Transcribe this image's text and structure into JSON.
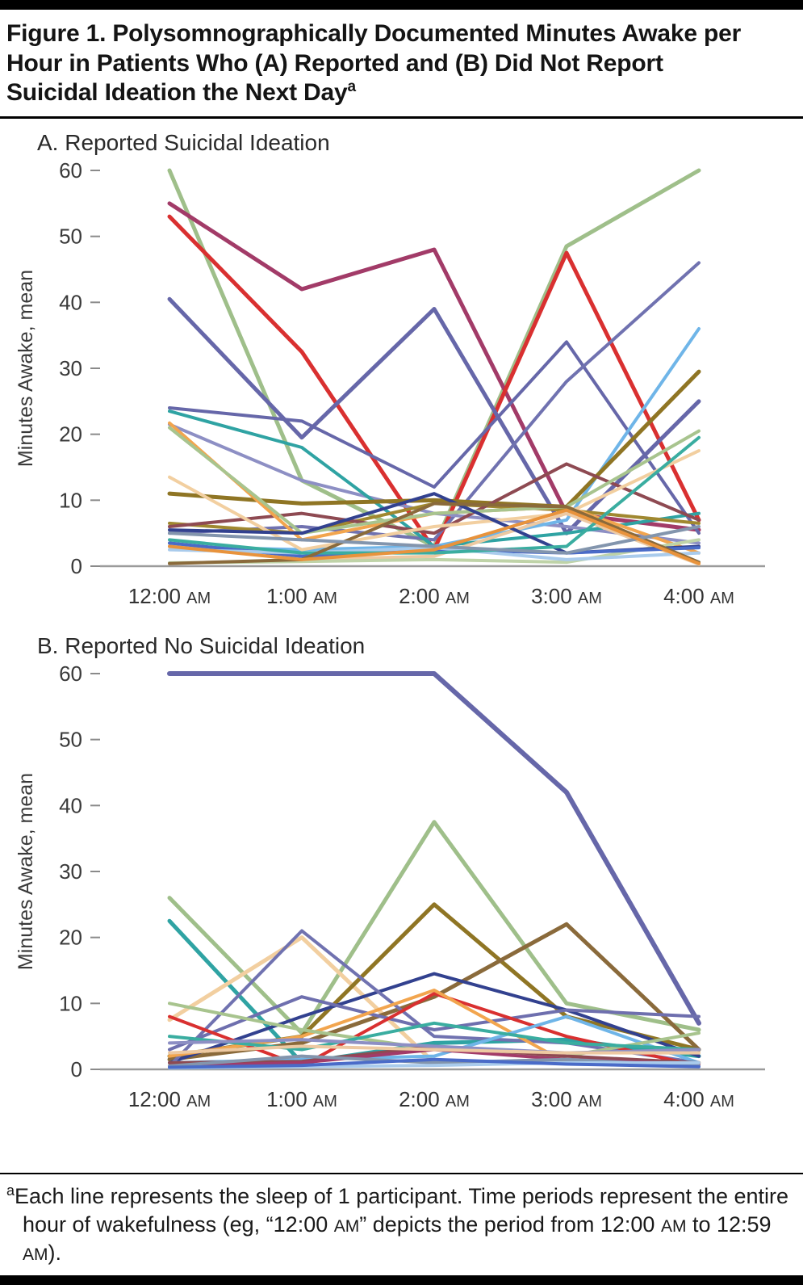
{
  "figure": {
    "title": "Figure 1. Polysomnographically Documented Minutes Awake per Hour in Patients Who (A) Reported and (B) Did Not Report Suicidal Ideation the Next Day",
    "title_superscript": "a"
  },
  "axes": {
    "ylabel": "Minutes Awake, mean",
    "ymin": 0,
    "ymax": 60,
    "yticks": [
      0,
      10,
      20,
      30,
      40,
      50,
      60
    ],
    "x_labels": [
      {
        "time": "12:00",
        "period": "AM"
      },
      {
        "time": "1:00",
        "period": "AM"
      },
      {
        "time": "2:00",
        "period": "AM"
      },
      {
        "time": "3:00",
        "period": "AM"
      },
      {
        "time": "4:00",
        "period": "AM"
      }
    ]
  },
  "chart_data": [
    {
      "type": "line",
      "panel": "A",
      "title": "A. Reported Suicidal Ideation",
      "xlabel": "",
      "ylabel": "Minutes Awake, mean",
      "ylim": [
        0,
        60
      ],
      "grid": false,
      "legend": "none",
      "categories": [
        "12:00 AM",
        "1:00 AM",
        "2:00 AM",
        "3:00 AM",
        "4:00 AM"
      ],
      "series": [
        {
          "name": "participant-A1",
          "color": "#9FBF8A",
          "width": 5,
          "values": [
            60,
            13,
            3,
            48.5,
            60
          ]
        },
        {
          "name": "participant-A2",
          "color": "#A23B68",
          "width": 5,
          "values": [
            55,
            42,
            48,
            8,
            5.5
          ]
        },
        {
          "name": "participant-A3",
          "color": "#D93030",
          "width": 5,
          "values": [
            53,
            32.5,
            2.5,
            47.5,
            7
          ]
        },
        {
          "name": "participant-A4",
          "color": "#6667A9",
          "width": 5,
          "values": [
            40.5,
            19.5,
            39,
            5,
            25
          ]
        },
        {
          "name": "participant-A5",
          "color": "#6667A9",
          "width": 4,
          "values": [
            24,
            22,
            12,
            34,
            5
          ]
        },
        {
          "name": "participant-A6",
          "color": "#7072B0",
          "width": 4,
          "values": [
            5,
            6,
            4,
            28,
            46
          ]
        },
        {
          "name": "participant-A7",
          "color": "#8D8FC4",
          "width": 4,
          "values": [
            21.5,
            13,
            8,
            6,
            3.5
          ]
        },
        {
          "name": "participant-A8",
          "color": "#2FA3A3",
          "width": 4,
          "values": [
            23.5,
            18,
            3,
            5,
            8
          ]
        },
        {
          "name": "participant-A9",
          "color": "#6FB5E8",
          "width": 4,
          "values": [
            3,
            2.5,
            3,
            7,
            36
          ]
        },
        {
          "name": "participant-A10",
          "color": "#8F7524",
          "width": 5,
          "values": [
            11,
            9.5,
            10,
            9,
            29.5
          ]
        },
        {
          "name": "participant-A11",
          "color": "#A08830",
          "width": 4,
          "values": [
            6.5,
            5,
            9.5,
            8.5,
            6.5
          ]
        },
        {
          "name": "participant-A12",
          "color": "#8E4A52",
          "width": 4,
          "values": [
            6,
            8,
            5,
            15.5,
            7
          ]
        },
        {
          "name": "participant-A13",
          "color": "#F2A54E",
          "width": 4,
          "values": [
            21.7,
            4,
            8,
            9,
            2
          ]
        },
        {
          "name": "participant-A14",
          "color": "#F2CFA0",
          "width": 4,
          "values": [
            13.5,
            2.5,
            6,
            8,
            17.5
          ]
        },
        {
          "name": "participant-A15",
          "color": "#EDC9A2",
          "width": 4,
          "values": [
            3.5,
            1,
            1.5,
            8,
            0.3
          ]
        },
        {
          "name": "participant-A16",
          "color": "#A8C48E",
          "width": 4,
          "values": [
            21,
            5,
            8,
            9,
            20.5
          ]
        },
        {
          "name": "participant-A17",
          "color": "#BFD3A8",
          "width": 4,
          "values": [
            0.5,
            0.7,
            1,
            0.6,
            4
          ]
        },
        {
          "name": "participant-A18",
          "color": "#32418F",
          "width": 4,
          "values": [
            5.5,
            5,
            11,
            2,
            3
          ]
        },
        {
          "name": "participant-A19",
          "color": "#4A6BC8",
          "width": 4,
          "values": [
            3.5,
            1.5,
            2.5,
            2,
            2.8
          ]
        },
        {
          "name": "participant-A20",
          "color": "#A9CBEC",
          "width": 4,
          "values": [
            2.5,
            2,
            2.8,
            1,
            2
          ]
        },
        {
          "name": "participant-A21",
          "color": "#3AADA0",
          "width": 4,
          "values": [
            4,
            2,
            2,
            3,
            19.5
          ]
        },
        {
          "name": "participant-A22",
          "color": "#8A6A3B",
          "width": 4,
          "values": [
            0.4,
            1,
            9.5,
            9,
            0.6
          ]
        },
        {
          "name": "participant-A23",
          "color": "#8395AD",
          "width": 4,
          "values": [
            5,
            4,
            3,
            2,
            6
          ]
        },
        {
          "name": "participant-A24",
          "color": "#E8933C",
          "width": 4,
          "values": [
            3,
            1,
            2.5,
            8.5,
            0.4
          ]
        }
      ]
    },
    {
      "type": "line",
      "panel": "B",
      "title": "B. Reported No Suicidal Ideation",
      "xlabel": "",
      "ylabel": "Minutes Awake, mean",
      "ylim": [
        0,
        60
      ],
      "grid": false,
      "legend": "none",
      "categories": [
        "12:00 AM",
        "1:00 AM",
        "2:00 AM",
        "3:00 AM",
        "4:00 AM"
      ],
      "series": [
        {
          "name": "participant-B1",
          "color": "#6667A9",
          "width": 6,
          "values": [
            60,
            60,
            60,
            42,
            7
          ]
        },
        {
          "name": "participant-B2",
          "color": "#9FBF8A",
          "width": 5,
          "values": [
            26,
            5.5,
            37.5,
            10,
            6
          ]
        },
        {
          "name": "participant-B3",
          "color": "#2FA3A3",
          "width": 5,
          "values": [
            22.5,
            1,
            4,
            4.5,
            2
          ]
        },
        {
          "name": "participant-B4",
          "color": "#F2CFA0",
          "width": 5,
          "values": [
            7.5,
            20,
            1,
            1.2,
            1
          ]
        },
        {
          "name": "participant-B5",
          "color": "#8F7524",
          "width": 5,
          "values": [
            2,
            5,
            25,
            8,
            3
          ]
        },
        {
          "name": "participant-B6",
          "color": "#8A6A3B",
          "width": 5,
          "values": [
            1.5,
            4,
            11,
            22,
            3
          ]
        },
        {
          "name": "participant-B7",
          "color": "#32418F",
          "width": 4,
          "values": [
            1,
            8,
            14.5,
            9,
            2
          ]
        },
        {
          "name": "participant-B8",
          "color": "#7072B0",
          "width": 4,
          "values": [
            0.5,
            21,
            5,
            4,
            1
          ]
        },
        {
          "name": "participant-B9",
          "color": "#6E6FAE",
          "width": 4,
          "values": [
            3,
            11,
            6,
            9,
            8
          ]
        },
        {
          "name": "participant-B10",
          "color": "#D93030",
          "width": 4,
          "values": [
            8,
            0.5,
            11.5,
            5,
            0.5
          ]
        },
        {
          "name": "participant-B11",
          "color": "#F2A54E",
          "width": 4,
          "values": [
            2,
            5,
            12,
            1,
            0.5
          ]
        },
        {
          "name": "participant-B12",
          "color": "#6FB5E8",
          "width": 4,
          "values": [
            1,
            1.5,
            2,
            8,
            1
          ]
        },
        {
          "name": "participant-B13",
          "color": "#A8C48E",
          "width": 4,
          "values": [
            10,
            6,
            3,
            2,
            5.5
          ]
        },
        {
          "name": "participant-B14",
          "color": "#3AADA0",
          "width": 4,
          "values": [
            5,
            3,
            7,
            4,
            3
          ]
        },
        {
          "name": "participant-B15",
          "color": "#8E4A52",
          "width": 4,
          "values": [
            1,
            1.2,
            3.5,
            2,
            1
          ]
        },
        {
          "name": "participant-B16",
          "color": "#A23B68",
          "width": 4,
          "values": [
            0.5,
            1,
            3,
            1.5,
            0.8
          ]
        },
        {
          "name": "participant-B17",
          "color": "#8D8FC4",
          "width": 4,
          "values": [
            4,
            4.5,
            3.5,
            2.5,
            3
          ]
        },
        {
          "name": "participant-B18",
          "color": "#EDC9A2",
          "width": 4,
          "values": [
            2.5,
            3.5,
            3,
            2.5,
            2.5
          ]
        },
        {
          "name": "participant-B19",
          "color": "#8395AD",
          "width": 4,
          "values": [
            0.5,
            2,
            1,
            1.5,
            0.5
          ]
        },
        {
          "name": "participant-B20",
          "color": "#A9CBEC",
          "width": 4,
          "values": [
            0.2,
            0.4,
            0.6,
            1,
            1
          ]
        },
        {
          "name": "participant-B21",
          "color": "#4A6BC8",
          "width": 4,
          "values": [
            0.3,
            0.6,
            1.5,
            0.8,
            0.4
          ]
        }
      ]
    }
  ],
  "footnote": {
    "segments": [
      {
        "t": "a",
        "s": "sup"
      },
      {
        "t": "Each line represents the sleep of 1 participant. Time periods represent the entire hour of wakefulness (eg, “12:00 ",
        "s": "n"
      },
      {
        "t": "AM",
        "s": "sc"
      },
      {
        "t": "” depicts the period from 12:00 ",
        "s": "n"
      },
      {
        "t": "AM",
        "s": "sc"
      },
      {
        "t": " to 12:59 ",
        "s": "n"
      },
      {
        "t": "AM",
        "s": "sc"
      },
      {
        "t": ").",
        "s": "n"
      }
    ]
  }
}
